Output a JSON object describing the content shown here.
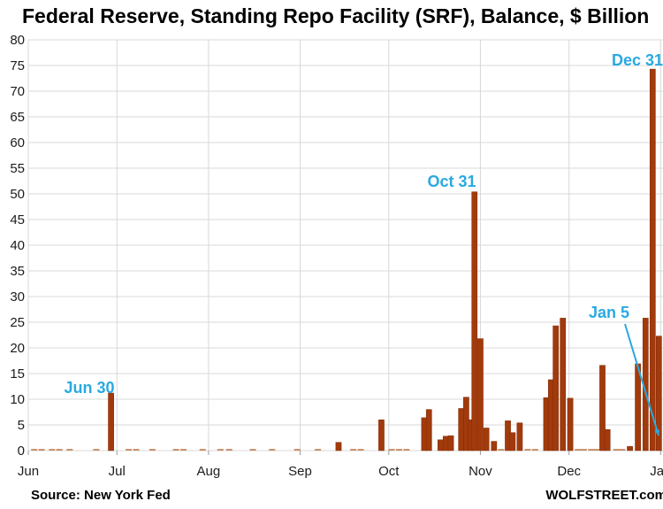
{
  "title": "Federal Reserve, Standing Repo Facility (SRF), Balance, $ Billion",
  "footer": {
    "source": "Source: New York Fed",
    "brand": "WOLFSTREET.com"
  },
  "colors": {
    "bar": "#a23a0c",
    "bar_edge": "#7d2c07",
    "bar_tiny": "#c08358",
    "annotation": "#29a9e1",
    "grid": "#d8d8d8",
    "axis_tick": "#9a9a9a",
    "text": "#1c1c1c",
    "background": "#ffffff"
  },
  "chart_data": {
    "type": "bar",
    "title": "Federal Reserve, Standing Repo Facility (SRF), Balance, $ Billion",
    "xlabel": "",
    "ylabel": "$ Billion",
    "ylim": [
      0,
      80
    ],
    "ytick_step": 5,
    "ytick_labels": [
      "0",
      "5",
      "10",
      "15",
      "20",
      "25",
      "30",
      "35",
      "40",
      "45",
      "50",
      "55",
      "60",
      "65",
      "70",
      "75",
      "80"
    ],
    "grid": "both",
    "legend": "none",
    "x_unit": "days from Jun 1",
    "months": [
      {
        "label": "Jun",
        "d": 0
      },
      {
        "label": "Jul",
        "d": 30
      },
      {
        "label": "Aug",
        "d": 61
      },
      {
        "label": "Sep",
        "d": 92
      },
      {
        "label": "Oct",
        "d": 122
      },
      {
        "label": "Nov",
        "d": 153
      },
      {
        "label": "Dec",
        "d": 183
      },
      {
        "label": "Jan",
        "d": 214
      }
    ],
    "bars": [
      {
        "d": 2,
        "v": 0.3
      },
      {
        "d": 4.5,
        "v": 0.3
      },
      {
        "d": 8,
        "v": 0.3
      },
      {
        "d": 10.5,
        "v": 0.3
      },
      {
        "d": 14,
        "v": 0.3
      },
      {
        "d": 23,
        "v": 0.3
      },
      {
        "d": 28,
        "v": 11.2
      },
      {
        "d": 34,
        "v": 0.3
      },
      {
        "d": 36.5,
        "v": 0.3
      },
      {
        "d": 42,
        "v": 0.3
      },
      {
        "d": 50,
        "v": 0.3
      },
      {
        "d": 52.5,
        "v": 0.3
      },
      {
        "d": 59,
        "v": 0.3
      },
      {
        "d": 65,
        "v": 0.3
      },
      {
        "d": 68,
        "v": 0.3
      },
      {
        "d": 76,
        "v": 0.3
      },
      {
        "d": 82.5,
        "v": 0.3
      },
      {
        "d": 91,
        "v": 0.3
      },
      {
        "d": 98,
        "v": 0.3
      },
      {
        "d": 105,
        "v": 1.6
      },
      {
        "d": 110,
        "v": 0.3
      },
      {
        "d": 112.5,
        "v": 0.3
      },
      {
        "d": 119.5,
        "v": 6.0
      },
      {
        "d": 123,
        "v": 0.3
      },
      {
        "d": 125.5,
        "v": 0.3
      },
      {
        "d": 128,
        "v": 0.3
      },
      {
        "d": 134,
        "v": 6.4
      },
      {
        "d": 135.6,
        "v": 8.0
      },
      {
        "d": 139.5,
        "v": 2.1
      },
      {
        "d": 141.3,
        "v": 2.8
      },
      {
        "d": 143,
        "v": 2.9
      },
      {
        "d": 146.5,
        "v": 8.2
      },
      {
        "d": 148.2,
        "v": 10.4
      },
      {
        "d": 149.7,
        "v": 6.0
      },
      {
        "d": 151,
        "v": 50.4
      },
      {
        "d": 153,
        "v": 21.8
      },
      {
        "d": 155,
        "v": 4.4
      },
      {
        "d": 157.6,
        "v": 1.8
      },
      {
        "d": 160,
        "v": 0.3
      },
      {
        "d": 162.3,
        "v": 5.8
      },
      {
        "d": 163.9,
        "v": 3.5
      },
      {
        "d": 166.3,
        "v": 5.4
      },
      {
        "d": 169,
        "v": 0.3
      },
      {
        "d": 171.5,
        "v": 0.3
      },
      {
        "d": 175.3,
        "v": 10.3
      },
      {
        "d": 176.9,
        "v": 13.8
      },
      {
        "d": 178.5,
        "v": 24.3
      },
      {
        "d": 180.9,
        "v": 25.8
      },
      {
        "d": 183.4,
        "v": 10.2
      },
      {
        "d": 186,
        "v": 0.3
      },
      {
        "d": 188,
        "v": 0.3
      },
      {
        "d": 190.5,
        "v": 0.3
      },
      {
        "d": 192.5,
        "v": 0.3
      },
      {
        "d": 194.3,
        "v": 16.6
      },
      {
        "d": 196,
        "v": 4.1
      },
      {
        "d": 199,
        "v": 0.3
      },
      {
        "d": 201,
        "v": 0.3
      },
      {
        "d": 203.6,
        "v": 0.8
      },
      {
        "d": 206.3,
        "v": 16.9
      },
      {
        "d": 208.9,
        "v": 25.8
      },
      {
        "d": 211.3,
        "v": 74.3
      },
      {
        "d": 213.4,
        "v": 22.3
      }
    ],
    "annotations": [
      {
        "text": "Jun 30",
        "x": 101,
        "y": 444
      },
      {
        "text": "Oct 31",
        "x": 511,
        "y": 211
      },
      {
        "text": "Dec 31",
        "x": 721,
        "y": 74
      },
      {
        "text": "Jan 5",
        "x": 689,
        "y": 359,
        "line": {
          "x1": 707,
          "y1": 366,
          "x2": 745,
          "y2": 492
        }
      }
    ]
  }
}
